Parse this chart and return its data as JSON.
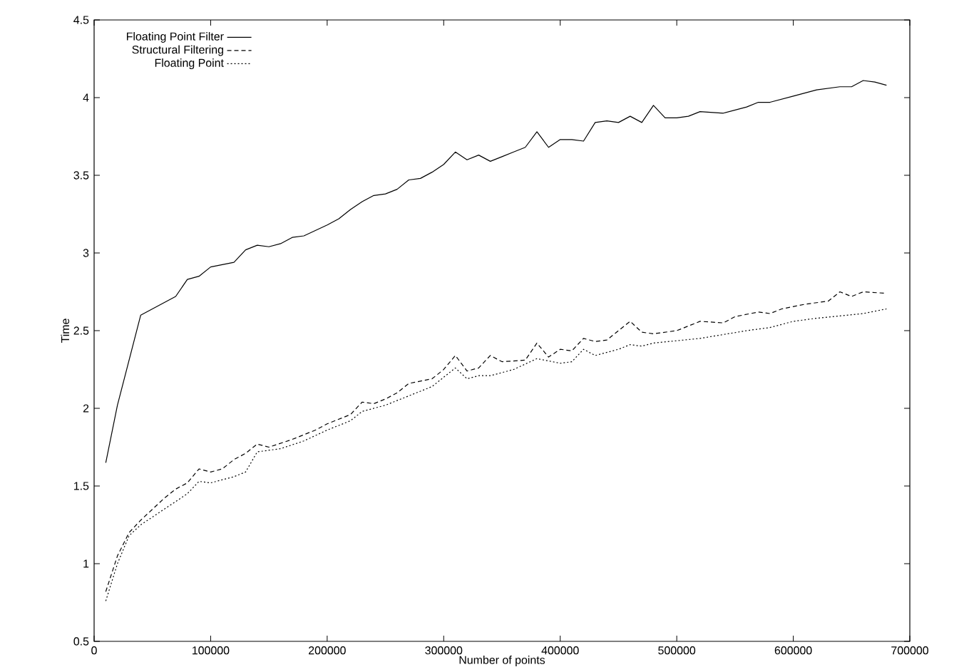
{
  "chart_data": {
    "type": "line",
    "xlabel": "Number of points",
    "ylabel": "Time",
    "xlim": [
      0,
      700000
    ],
    "ylim": [
      0.5,
      4.5
    ],
    "xticks": [
      0,
      100000,
      200000,
      300000,
      400000,
      500000,
      600000,
      700000
    ],
    "yticks": [
      0.5,
      1,
      1.5,
      2,
      2.5,
      3,
      3.5,
      4,
      4.5
    ],
    "grid": false,
    "legend": "top left",
    "marker": "none",
    "series": [
      {
        "name": "Floating Point Filter",
        "color": "#000000",
        "line_style": "solid",
        "x": [
          10000,
          20000,
          40000,
          70000,
          80000,
          90000,
          100000,
          120000,
          130000,
          140000,
          150000,
          160000,
          170000,
          180000,
          200000,
          210000,
          220000,
          230000,
          240000,
          250000,
          260000,
          270000,
          280000,
          290000,
          300000,
          310000,
          320000,
          330000,
          340000,
          350000,
          360000,
          370000,
          380000,
          390000,
          400000,
          410000,
          420000,
          430000,
          440000,
          450000,
          460000,
          470000,
          480000,
          490000,
          500000,
          510000,
          520000,
          540000,
          560000,
          570000,
          580000,
          600000,
          620000,
          640000,
          650000,
          660000,
          670000,
          680000
        ],
        "values": [
          1.65,
          2.02,
          2.6,
          2.72,
          2.83,
          2.85,
          2.91,
          2.94,
          3.02,
          3.05,
          3.04,
          3.06,
          3.1,
          3.11,
          3.18,
          3.22,
          3.28,
          3.33,
          3.37,
          3.38,
          3.41,
          3.47,
          3.48,
          3.52,
          3.57,
          3.65,
          3.6,
          3.63,
          3.59,
          3.62,
          3.65,
          3.68,
          3.78,
          3.68,
          3.73,
          3.73,
          3.72,
          3.84,
          3.85,
          3.84,
          3.88,
          3.84,
          3.95,
          3.87,
          3.87,
          3.88,
          3.91,
          3.9,
          3.94,
          3.97,
          3.97,
          4.01,
          4.05,
          4.07,
          4.07,
          4.11,
          4.1,
          4.08
        ]
      },
      {
        "name": "Structural Filtering",
        "color": "#000000",
        "line_style": "dashed",
        "x": [
          10000,
          20000,
          30000,
          40000,
          50000,
          60000,
          70000,
          80000,
          90000,
          100000,
          110000,
          120000,
          130000,
          140000,
          150000,
          170000,
          190000,
          200000,
          220000,
          230000,
          240000,
          250000,
          260000,
          270000,
          290000,
          300000,
          310000,
          320000,
          330000,
          340000,
          350000,
          370000,
          380000,
          390000,
          400000,
          410000,
          420000,
          430000,
          440000,
          460000,
          470000,
          480000,
          500000,
          520000,
          540000,
          550000,
          570000,
          580000,
          590000,
          610000,
          630000,
          640000,
          650000,
          660000,
          680000
        ],
        "values": [
          0.82,
          1.05,
          1.2,
          1.28,
          1.35,
          1.42,
          1.48,
          1.52,
          1.61,
          1.59,
          1.61,
          1.67,
          1.71,
          1.77,
          1.75,
          1.8,
          1.86,
          1.9,
          1.96,
          2.04,
          2.03,
          2.06,
          2.1,
          2.16,
          2.19,
          2.25,
          2.34,
          2.24,
          2.26,
          2.34,
          2.3,
          2.31,
          2.42,
          2.33,
          2.38,
          2.37,
          2.45,
          2.43,
          2.44,
          2.56,
          2.49,
          2.48,
          2.5,
          2.56,
          2.55,
          2.59,
          2.62,
          2.61,
          2.64,
          2.67,
          2.69,
          2.75,
          2.72,
          2.75,
          2.74
        ]
      },
      {
        "name": "Floating Point",
        "color": "#000000",
        "line_style": "dotted",
        "x": [
          10000,
          20000,
          30000,
          40000,
          60000,
          80000,
          90000,
          100000,
          120000,
          130000,
          140000,
          160000,
          180000,
          200000,
          220000,
          230000,
          250000,
          270000,
          290000,
          310000,
          320000,
          330000,
          340000,
          360000,
          380000,
          400000,
          410000,
          420000,
          430000,
          450000,
          460000,
          470000,
          480000,
          520000,
          560000,
          580000,
          600000,
          620000,
          660000,
          680000
        ],
        "values": [
          0.76,
          1.0,
          1.18,
          1.25,
          1.35,
          1.45,
          1.53,
          1.52,
          1.56,
          1.59,
          1.72,
          1.74,
          1.79,
          1.86,
          1.92,
          1.98,
          2.02,
          2.08,
          2.14,
          2.26,
          2.19,
          2.21,
          2.21,
          2.25,
          2.32,
          2.29,
          2.3,
          2.38,
          2.34,
          2.38,
          2.41,
          2.4,
          2.42,
          2.45,
          2.5,
          2.52,
          2.56,
          2.58,
          2.61,
          2.64
        ]
      }
    ]
  }
}
